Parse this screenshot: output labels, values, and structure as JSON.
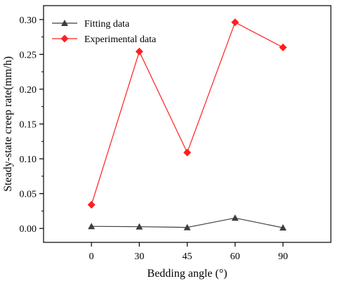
{
  "chart_data": {
    "type": "line",
    "categories": [
      "0",
      "30",
      "45",
      "60",
      "90"
    ],
    "xlabel": "Bedding angle (°)",
    "ylabel": "Steady-state creep rate(mm/h)",
    "ylim": [
      -0.02,
      0.32
    ],
    "yticks": [
      "0.00",
      "0.05",
      "0.10",
      "0.15",
      "0.20",
      "0.25",
      "0.30"
    ],
    "ytick_values": [
      0,
      0.05,
      0.1,
      0.15,
      0.2,
      0.25,
      0.3
    ],
    "grid": false,
    "legend_position": "top-left",
    "series": [
      {
        "name": "Fitting data",
        "values": [
          0.003,
          0.0025,
          0.0015,
          0.015,
          0.001
        ],
        "color": "#3d3d3d",
        "marker": "triangle"
      },
      {
        "name": "Experimental data",
        "values": [
          0.034,
          0.254,
          0.109,
          0.296,
          0.26
        ],
        "color": "#ff1f1f",
        "marker": "diamond"
      }
    ]
  }
}
